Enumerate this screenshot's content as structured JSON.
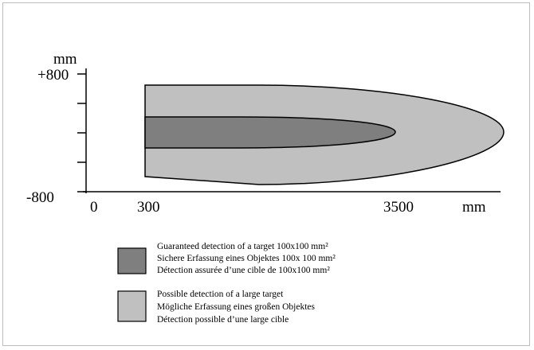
{
  "axes": {
    "y_unit": "mm",
    "y_top": "+800",
    "y_bottom": "-800",
    "x_zero": "0",
    "x_start": "300",
    "x_end": "3500",
    "x_unit": "mm"
  },
  "zones": [
    {
      "name": "guaranteed",
      "color": "#7f7f7f",
      "start_mm": 300,
      "end_mm": 3500
    },
    {
      "name": "possible",
      "color": "#c0c0c0",
      "start_mm": 300
    }
  ],
  "legend": [
    {
      "color": "#7f7f7f",
      "lines": [
        "Guaranteed detection of a target 100x100 mm²",
        "Sichere Erfassung eines Objektes 100x 100 mm²",
        "Détection assurée d’une cible de 100x100 mm²"
      ]
    },
    {
      "color": "#c0c0c0",
      "lines": [
        "Possible detection of a large target",
        "Mögliche Erfassung eines  großen Objektes",
        "Détection possible d’une large cible"
      ]
    }
  ]
}
